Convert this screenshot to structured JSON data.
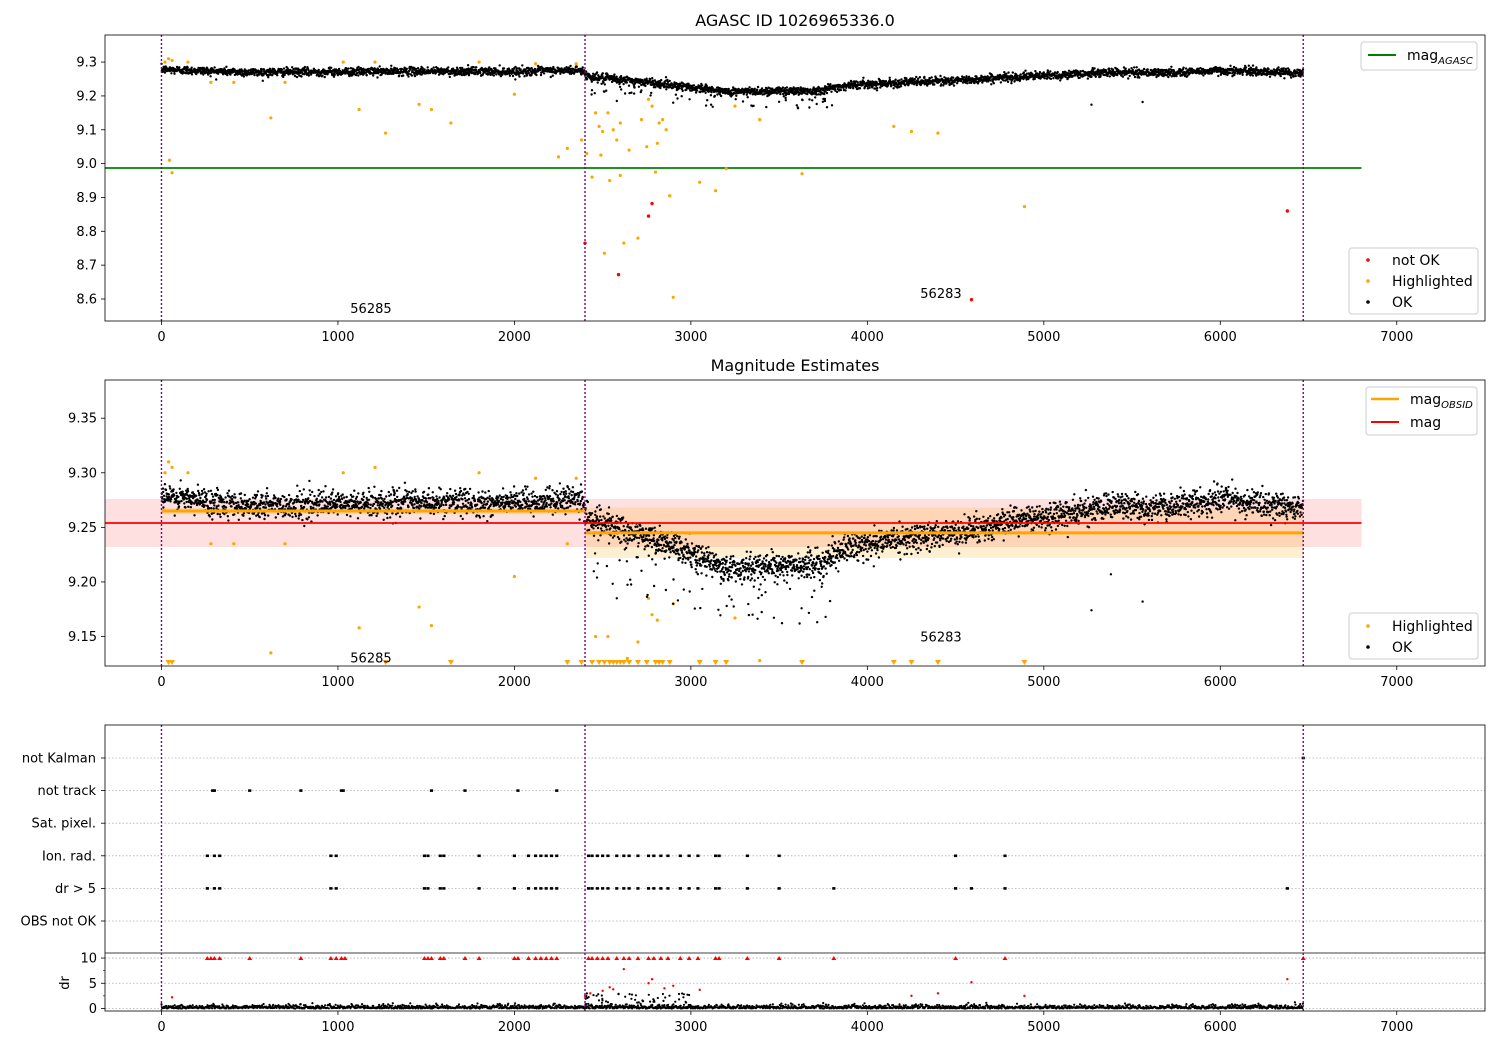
{
  "colors": {
    "ok": "#000000",
    "highlighted": "#ffa500",
    "not_ok": "#ff0000",
    "mag_agasc": "#008000",
    "mag_obsid": "#ffa500",
    "mag": "#ff0000",
    "obsid_boundary": "#800080"
  },
  "chart_data": [
    {
      "type": "scatter",
      "title": "AGASC ID 1026965336.0",
      "xlim": [
        -320,
        7500
      ],
      "ylim": [
        8.535,
        9.38
      ],
      "x_ticks": [
        0,
        1000,
        2000,
        3000,
        4000,
        5000,
        6000,
        7000
      ],
      "x_tick_labels": [
        "0",
        "1000",
        "2000",
        "3000",
        "4000",
        "5000",
        "6000",
        "7000"
      ],
      "y_ticks": [
        8.6,
        8.7,
        8.8,
        8.9,
        9.0,
        9.1,
        9.2,
        9.3
      ],
      "y_tick_labels": [
        "8.6",
        "8.7",
        "8.8",
        "8.9",
        "9.0",
        "9.1",
        "9.2",
        "9.3"
      ],
      "obsid_boundaries": [
        0,
        2400,
        6470
      ],
      "obsid_annotations": [
        {
          "x": 1070,
          "y": 8.57,
          "text": "56285"
        },
        {
          "x": 4300,
          "y": 8.615,
          "text": "56283"
        }
      ],
      "mag_agasc": {
        "value": 8.987,
        "x_range": [
          -320,
          6800
        ]
      },
      "legends": [
        {
          "position": "top-right",
          "entries": [
            {
              "label_main": "mag",
              "label_sub": "AGASC",
              "style": "line",
              "color_key": "mag_agasc"
            }
          ]
        },
        {
          "position": "lower-right",
          "entries": [
            {
              "label": "not OK",
              "style": "dot",
              "color_key": "not_ok"
            },
            {
              "label": "Highlighted",
              "style": "dot",
              "color_key": "highlighted"
            },
            {
              "label": "OK",
              "style": "dot",
              "color_key": "ok"
            }
          ]
        }
      ],
      "ok_trend": [
        [
          0,
          9.278
        ],
        [
          500,
          9.27
        ],
        [
          1000,
          9.271
        ],
        [
          1500,
          9.273
        ],
        [
          2000,
          9.272
        ],
        [
          2380,
          9.276
        ],
        [
          2420,
          9.257
        ],
        [
          2600,
          9.248
        ],
        [
          2800,
          9.238
        ],
        [
          3000,
          9.226
        ],
        [
          3200,
          9.212
        ],
        [
          3500,
          9.215
        ],
        [
          3700,
          9.215
        ],
        [
          3900,
          9.232
        ],
        [
          4200,
          9.24
        ],
        [
          4500,
          9.245
        ],
        [
          4800,
          9.255
        ],
        [
          5100,
          9.262
        ],
        [
          5400,
          9.27
        ],
        [
          5700,
          9.268
        ],
        [
          6000,
          9.275
        ],
        [
          6470,
          9.268
        ]
      ],
      "ok_scatter": 0.011,
      "ok_outliers": [
        [
          5270,
          9.174
        ],
        [
          5560,
          9.182
        ],
        [
          2580,
          9.185
        ],
        [
          2900,
          9.18
        ],
        [
          3350,
          9.17
        ]
      ],
      "highlighted_points": [
        [
          20,
          9.3
        ],
        [
          40,
          9.31
        ],
        [
          60,
          9.305
        ],
        [
          45,
          9.01
        ],
        [
          60,
          8.973
        ],
        [
          150,
          9.3
        ],
        [
          280,
          9.24
        ],
        [
          410,
          9.24
        ],
        [
          620,
          9.135
        ],
        [
          700,
          9.24
        ],
        [
          1030,
          9.3
        ],
        [
          1120,
          9.16
        ],
        [
          1210,
          9.3
        ],
        [
          1270,
          9.09
        ],
        [
          1460,
          9.175
        ],
        [
          1530,
          9.16
        ],
        [
          1640,
          9.12
        ],
        [
          1800,
          9.3
        ],
        [
          2000,
          9.205
        ],
        [
          2120,
          9.295
        ],
        [
          2250,
          9.02
        ],
        [
          2300,
          9.045
        ],
        [
          2350,
          9.295
        ],
        [
          2380,
          9.07
        ],
        [
          2410,
          9.03
        ],
        [
          2440,
          8.96
        ],
        [
          2460,
          9.15
        ],
        [
          2480,
          9.11
        ],
        [
          2490,
          9.025
        ],
        [
          2500,
          9.095
        ],
        [
          2510,
          8.735
        ],
        [
          2530,
          9.15
        ],
        [
          2540,
          8.95
        ],
        [
          2560,
          9.1
        ],
        [
          2580,
          9.07
        ],
        [
          2600,
          8.965
        ],
        [
          2600,
          9.12
        ],
        [
          2620,
          8.765
        ],
        [
          2650,
          9.04
        ],
        [
          2700,
          8.78
        ],
        [
          2720,
          9.13
        ],
        [
          2750,
          9.05
        ],
        [
          2760,
          9.19
        ],
        [
          2780,
          9.17
        ],
        [
          2800,
          8.975
        ],
        [
          2810,
          9.06
        ],
        [
          2820,
          9.12
        ],
        [
          2840,
          9.13
        ],
        [
          2860,
          9.1
        ],
        [
          2880,
          8.905
        ],
        [
          2900,
          8.605
        ],
        [
          3050,
          8.945
        ],
        [
          3140,
          8.92
        ],
        [
          3200,
          8.985
        ],
        [
          3250,
          9.17
        ],
        [
          3390,
          9.13
        ],
        [
          3630,
          8.97
        ],
        [
          4150,
          9.11
        ],
        [
          4250,
          9.095
        ],
        [
          4400,
          9.09
        ],
        [
          4890,
          8.873
        ]
      ],
      "not_ok_points": [
        [
          2400,
          8.765
        ],
        [
          2590,
          8.672
        ],
        [
          2760,
          8.845
        ],
        [
          2780,
          8.882
        ],
        [
          4590,
          8.598
        ],
        [
          6380,
          8.86
        ]
      ]
    },
    {
      "type": "scatter",
      "title": "Magnitude Estimates",
      "xlim": [
        -320,
        7500
      ],
      "ylim": [
        9.123,
        9.385
      ],
      "x_ticks": [
        0,
        1000,
        2000,
        3000,
        4000,
        5000,
        6000,
        7000
      ],
      "x_tick_labels": [
        "0",
        "1000",
        "2000",
        "3000",
        "4000",
        "5000",
        "6000",
        "7000"
      ],
      "y_ticks": [
        9.15,
        9.2,
        9.25,
        9.3,
        9.35
      ],
      "y_tick_labels": [
        "9.15",
        "9.20",
        "9.25",
        "9.30",
        "9.35"
      ],
      "obsid_boundaries": [
        0,
        2400,
        6470
      ],
      "obsid_annotations": [
        {
          "x": 1070,
          "y": 9.13,
          "text": "56285"
        },
        {
          "x": 4300,
          "y": 9.149,
          "text": "56283"
        }
      ],
      "mag": {
        "value": 9.254,
        "band": [
          9.232,
          9.276
        ],
        "x_range": [
          -320,
          6800
        ]
      },
      "mag_obsid": [
        {
          "x_range": [
            0,
            2400
          ],
          "value": 9.265,
          "band": [
            9.262,
            9.268
          ]
        },
        {
          "x_range": [
            2400,
            6470
          ],
          "value": 9.245,
          "band": [
            9.222,
            9.268
          ]
        }
      ],
      "legends": [
        {
          "position": "top-right",
          "entries": [
            {
              "label_main": "mag",
              "label_sub": "OBSID",
              "style": "line",
              "color_key": "mag_obsid"
            },
            {
              "label": "mag",
              "style": "line",
              "color_key": "mag"
            }
          ]
        },
        {
          "position": "lower-right",
          "entries": [
            {
              "label": "Highlighted",
              "style": "dot",
              "color_key": "highlighted"
            },
            {
              "label": "OK",
              "style": "dot",
              "color_key": "ok"
            }
          ]
        }
      ],
      "ok_trend": [
        [
          0,
          9.278
        ],
        [
          500,
          9.27
        ],
        [
          1000,
          9.271
        ],
        [
          1500,
          9.273
        ],
        [
          2000,
          9.272
        ],
        [
          2380,
          9.276
        ],
        [
          2420,
          9.257
        ],
        [
          2600,
          9.248
        ],
        [
          2800,
          9.238
        ],
        [
          3000,
          9.226
        ],
        [
          3200,
          9.212
        ],
        [
          3500,
          9.215
        ],
        [
          3700,
          9.215
        ],
        [
          3900,
          9.232
        ],
        [
          4200,
          9.24
        ],
        [
          4500,
          9.245
        ],
        [
          4800,
          9.255
        ],
        [
          5100,
          9.262
        ],
        [
          5400,
          9.27
        ],
        [
          5700,
          9.268
        ],
        [
          6000,
          9.275
        ],
        [
          6470,
          9.268
        ]
      ],
      "ok_scatter": 0.011,
      "ok_outliers": [
        [
          5270,
          9.174
        ],
        [
          5560,
          9.182
        ],
        [
          2580,
          9.185
        ],
        [
          2900,
          9.18
        ],
        [
          3350,
          9.17
        ],
        [
          5380,
          9.207
        ]
      ],
      "highlighted_points": [
        [
          20,
          9.3
        ],
        [
          40,
          9.31
        ],
        [
          60,
          9.305
        ],
        [
          150,
          9.3
        ],
        [
          280,
          9.235
        ],
        [
          410,
          9.235
        ],
        [
          620,
          9.135
        ],
        [
          700,
          9.235
        ],
        [
          1030,
          9.3
        ],
        [
          1120,
          9.158
        ],
        [
          1210,
          9.305
        ],
        [
          1460,
          9.177
        ],
        [
          1530,
          9.16
        ],
        [
          1800,
          9.3
        ],
        [
          2000,
          9.205
        ],
        [
          2120,
          9.295
        ],
        [
          2350,
          9.295
        ],
        [
          2300,
          9.235
        ],
        [
          2460,
          9.15
        ],
        [
          2530,
          9.15
        ],
        [
          2700,
          9.145
        ],
        [
          2760,
          9.185
        ],
        [
          2780,
          9.17
        ],
        [
          2640,
          9.13
        ],
        [
          2900,
          9.18
        ],
        [
          3250,
          9.167
        ],
        [
          3390,
          9.128
        ],
        [
          2810,
          9.165
        ]
      ],
      "clipped_triangles_x": [
        40,
        60,
        1270,
        1640,
        2300,
        2380,
        2440,
        2480,
        2510,
        2540,
        2560,
        2580,
        2600,
        2620,
        2650,
        2700,
        2750,
        2800,
        2820,
        2840,
        2880,
        3050,
        3140,
        3200,
        3630,
        4150,
        4250,
        4400,
        4890
      ]
    },
    {
      "type": "scatter",
      "title": "",
      "ylabel": "dr",
      "xlim": [
        -320,
        7500
      ],
      "x_ticks": [
        0,
        1000,
        2000,
        3000,
        4000,
        5000,
        6000,
        7000
      ],
      "x_tick_labels": [
        "0",
        "1000",
        "2000",
        "3000",
        "4000",
        "5000",
        "6000",
        "7000"
      ],
      "flag_rows": [
        "not Kalman",
        "not track",
        "Sat. pixel.",
        "Ion. rad.",
        "dr > 5",
        "OBS not OK"
      ],
      "obsid_boundaries": [
        0,
        2400,
        6470
      ],
      "flag_events": {
        "not Kalman": [
          6470
        ],
        "not track": [
          290,
          300,
          500,
          790,
          1020,
          1030,
          1530,
          1720,
          2020,
          2240
        ],
        "Sat. pixel.": [],
        "Ion. rad.": [
          260,
          300,
          330,
          960,
          990,
          1490,
          1510,
          1580,
          1600,
          1800,
          2000,
          2080,
          2120,
          2150,
          2180,
          2210,
          2240,
          2420,
          2440,
          2470,
          2500,
          2530,
          2580,
          2620,
          2650,
          2700,
          2760,
          2790,
          2830,
          2870,
          2940,
          2990,
          3040,
          3140,
          3160,
          3320,
          3500,
          4500,
          4780
        ],
        "dr > 5": [
          260,
          300,
          330,
          960,
          990,
          1490,
          1510,
          1580,
          1600,
          1800,
          2000,
          2080,
          2120,
          2150,
          2180,
          2210,
          2240,
          2420,
          2440,
          2470,
          2500,
          2530,
          2580,
          2620,
          2650,
          2700,
          2760,
          2790,
          2830,
          2870,
          2940,
          2990,
          3040,
          3140,
          3160,
          3320,
          3500,
          3810,
          4500,
          4590,
          4780,
          6380
        ],
        "OBS not OK": []
      },
      "dr_axis": {
        "ylim": [
          -0.5,
          11
        ],
        "y_ticks": [
          0,
          5,
          10
        ],
        "y_tick_labels": [
          "0",
          "5",
          "10"
        ]
      },
      "dr_clipped_x": [
        260,
        280,
        300,
        330,
        500,
        790,
        960,
        990,
        1020,
        1040,
        1490,
        1510,
        1530,
        1580,
        1600,
        1720,
        1800,
        2000,
        2020,
        2080,
        2120,
        2150,
        2180,
        2210,
        2240,
        2420,
        2440,
        2470,
        2500,
        2530,
        2580,
        2620,
        2650,
        2700,
        2760,
        2790,
        2830,
        2870,
        2940,
        2990,
        3040,
        3140,
        3160,
        3320,
        3500,
        3810,
        4500,
        4780,
        6470
      ],
      "dr_points": [
        [
          2620,
          7.8
        ],
        [
          2500,
          3.5
        ],
        [
          2540,
          4.2
        ],
        [
          2560,
          3.8
        ],
        [
          2760,
          5.0
        ],
        [
          2780,
          5.8
        ],
        [
          2850,
          4.0
        ],
        [
          2900,
          4.5
        ],
        [
          3050,
          3.7
        ],
        [
          4400,
          3.0
        ],
        [
          4590,
          5.2
        ],
        [
          6380,
          5.8
        ],
        [
          2400,
          2.5
        ],
        [
          2430,
          3.0
        ],
        [
          4250,
          2.5
        ],
        [
          4890,
          2.5
        ],
        [
          60,
          2.2
        ]
      ]
    }
  ]
}
